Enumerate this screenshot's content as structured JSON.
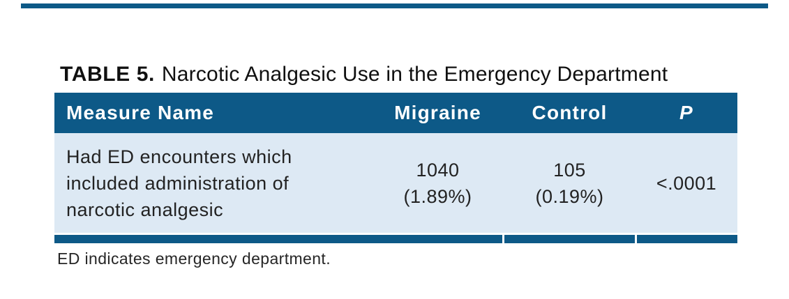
{
  "colors": {
    "accent": "#0d5987",
    "row_bg": "#dde9f4",
    "header_text": "#ffffff",
    "body_text": "#222222"
  },
  "title": {
    "label": "TABLE 5.",
    "text": "Narcotic Analgesic Use in the Emergency Department"
  },
  "table": {
    "columns": [
      {
        "header": "Measure Name"
      },
      {
        "header": "Migraine"
      },
      {
        "header": "Control"
      },
      {
        "header": "P"
      }
    ],
    "row": {
      "measure": "Had ED encounters which\nincluded administration of\nnarcotic analgesic",
      "migraine": "1040\n(1.89%)",
      "control": "105\n(0.19%)",
      "p": "<.0001"
    }
  },
  "footnote": "ED indicates emergency department."
}
